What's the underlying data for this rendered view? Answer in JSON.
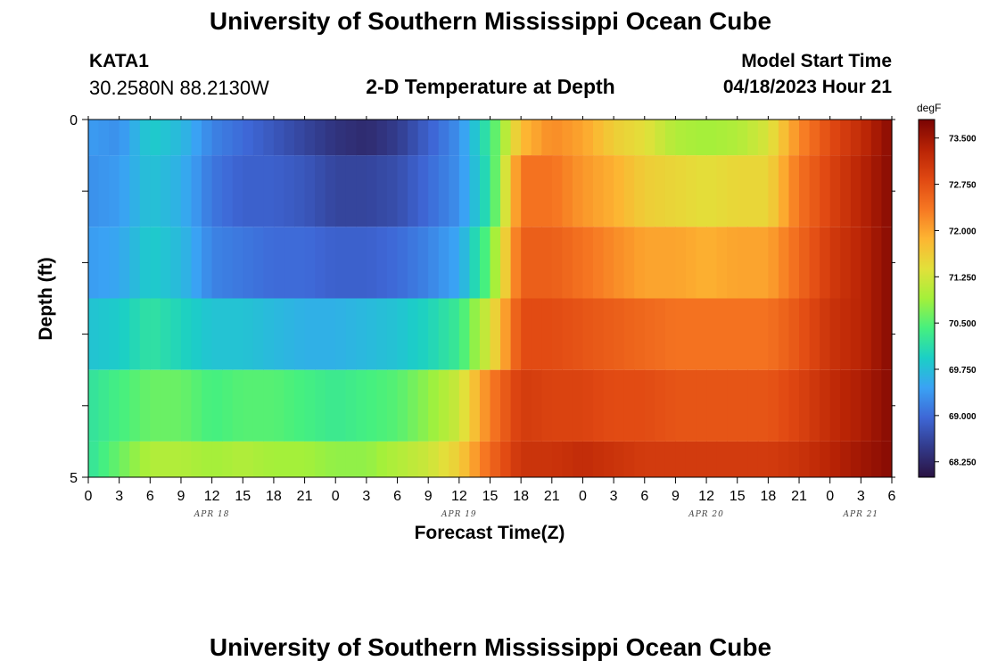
{
  "header": {
    "title": "University of Southern Mississippi Ocean Cube",
    "station": "KATA1",
    "coords": "30.2580N  88.2130W",
    "plot_title": "2-D Temperature at Depth",
    "start_label": "Model Start Time",
    "start_value": "04/18/2023 Hour 21"
  },
  "footer": {
    "title": "University of Southern Mississippi Ocean Cube"
  },
  "chart_data": {
    "type": "heatmap",
    "title": "2-D Temperature at Depth",
    "xlabel": "Forecast Time(Z)",
    "ylabel": "Depth (ft)",
    "x_tick_labels": [
      "0",
      "3",
      "6",
      "9",
      "12",
      "15",
      "18",
      "21",
      "0",
      "3",
      "6",
      "9",
      "12",
      "15",
      "18",
      "21",
      "0",
      "3",
      "6",
      "9",
      "12",
      "15",
      "18",
      "21",
      "0",
      "3",
      "6"
    ],
    "date_labels": [
      "APR 18",
      "APR 19",
      "APR 20",
      "APR 21"
    ],
    "y_tick_labels": [
      "0",
      "5"
    ],
    "ylim": [
      0,
      5
    ],
    "colorbar": {
      "unit": "degF",
      "min": 68.0,
      "max": 73.8,
      "ticks": [
        "73.500",
        "72.750",
        "72.000",
        "71.250",
        "70.500",
        "69.750",
        "69.000",
        "68.250"
      ],
      "colors": [
        "#2a1242",
        "#323a8a",
        "#3e67d6",
        "#3aa2f4",
        "#1bcfc6",
        "#46f07f",
        "#a4f03a",
        "#e2e03a",
        "#fdb532",
        "#f67722",
        "#e04812",
        "#b82305",
        "#7a0403"
      ]
    },
    "x_hours": [
      0,
      3,
      6,
      9,
      12,
      15,
      18,
      21,
      24,
      27,
      30,
      33,
      36,
      39,
      42,
      45,
      48,
      51,
      54,
      57,
      60,
      63,
      66,
      69,
      72,
      75,
      78
    ],
    "rows": [
      {
        "depth": "0.0-0.5",
        "values": [
          69.4,
          69.3,
          69.9,
          69.7,
          69.2,
          69.0,
          68.8,
          68.6,
          68.4,
          68.3,
          68.5,
          68.9,
          69.3,
          70.3,
          71.8,
          72.2,
          72.0,
          71.6,
          71.4,
          71.0,
          70.9,
          71.0,
          71.3,
          72.2,
          72.8,
          73.2,
          73.7
        ]
      },
      {
        "depth": "0.5-1.5",
        "values": [
          69.3,
          69.4,
          69.8,
          69.6,
          69.1,
          68.9,
          68.9,
          68.8,
          68.6,
          68.6,
          68.7,
          69.0,
          69.3,
          70.2,
          72.4,
          72.4,
          72.1,
          71.9,
          71.6,
          71.5,
          71.4,
          71.5,
          71.5,
          72.4,
          72.9,
          73.3,
          73.7
        ]
      },
      {
        "depth": "1.5-2.5",
        "values": [
          69.4,
          69.5,
          69.9,
          69.7,
          69.2,
          69.1,
          69.0,
          69.0,
          68.9,
          68.9,
          69.0,
          69.2,
          69.5,
          70.6,
          72.6,
          72.6,
          72.4,
          72.2,
          72.0,
          72.0,
          71.9,
          72.0,
          72.0,
          72.5,
          73.0,
          73.3,
          73.7
        ]
      },
      {
        "depth": "2.5-3.5",
        "values": [
          69.8,
          69.9,
          70.2,
          70.0,
          69.8,
          69.8,
          69.7,
          69.6,
          69.6,
          69.7,
          69.8,
          70.0,
          70.3,
          71.3,
          72.8,
          72.8,
          72.7,
          72.6,
          72.5,
          72.4,
          72.4,
          72.4,
          72.4,
          72.7,
          73.1,
          73.3,
          73.7
        ]
      },
      {
        "depth": "3.5-4.5",
        "values": [
          70.2,
          70.4,
          70.6,
          70.6,
          70.4,
          70.5,
          70.5,
          70.4,
          70.3,
          70.4,
          70.5,
          70.8,
          71.2,
          72.3,
          73.0,
          72.9,
          72.9,
          72.8,
          72.8,
          72.7,
          72.7,
          72.7,
          72.7,
          72.9,
          73.2,
          73.4,
          73.7
        ]
      },
      {
        "depth": "4.5-5.0",
        "values": [
          70.2,
          70.6,
          71.0,
          71.0,
          70.9,
          71.0,
          70.9,
          70.9,
          70.8,
          70.8,
          71.0,
          71.2,
          71.6,
          72.5,
          73.1,
          73.1,
          73.2,
          73.1,
          73.0,
          73.0,
          73.0,
          73.0,
          73.0,
          73.1,
          73.3,
          73.5,
          73.7
        ]
      }
    ]
  }
}
